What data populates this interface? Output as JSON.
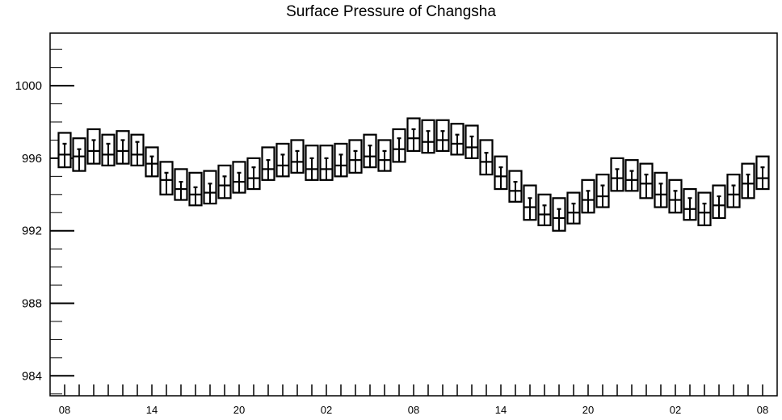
{
  "chart_data": {
    "type": "boxplot",
    "title": "Surface Pressure of Changsha",
    "xlabel": "",
    "ylabel": "",
    "ylim": [
      982.9,
      1002.9
    ],
    "yticks": [
      984,
      988,
      992,
      996,
      1000
    ],
    "xtick_labels": [
      "08",
      "14",
      "20",
      "02",
      "08",
      "14",
      "20",
      "02",
      "08"
    ],
    "grid": false,
    "box_color": "#000000",
    "boxes": [
      {
        "x": 0,
        "top": 997.4,
        "median": 996.2,
        "bottom": 995.5,
        "whisker": 996.8
      },
      {
        "x": 1,
        "top": 997.1,
        "median": 996.1,
        "bottom": 995.3,
        "whisker": 996.5
      },
      {
        "x": 2,
        "top": 997.6,
        "median": 996.4,
        "bottom": 995.7,
        "whisker": 997.0
      },
      {
        "x": 3,
        "top": 997.3,
        "median": 996.2,
        "bottom": 995.6,
        "whisker": 996.8
      },
      {
        "x": 4,
        "top": 997.5,
        "median": 996.4,
        "bottom": 995.7,
        "whisker": 997.0
      },
      {
        "x": 5,
        "top": 997.3,
        "median": 996.2,
        "bottom": 995.6,
        "whisker": 996.9
      },
      {
        "x": 6,
        "top": 996.6,
        "median": 995.7,
        "bottom": 995.0,
        "whisker": 996.1
      },
      {
        "x": 7,
        "top": 995.8,
        "median": 994.8,
        "bottom": 994.0,
        "whisker": 995.2
      },
      {
        "x": 8,
        "top": 995.4,
        "median": 994.3,
        "bottom": 993.7,
        "whisker": 994.7
      },
      {
        "x": 9,
        "top": 995.2,
        "median": 994.0,
        "bottom": 993.4,
        "whisker": 994.4
      },
      {
        "x": 10,
        "top": 995.3,
        "median": 994.1,
        "bottom": 993.5,
        "whisker": 994.6
      },
      {
        "x": 11,
        "top": 995.6,
        "median": 994.5,
        "bottom": 993.8,
        "whisker": 995.0
      },
      {
        "x": 12,
        "top": 995.8,
        "median": 994.7,
        "bottom": 994.1,
        "whisker": 995.2
      },
      {
        "x": 13,
        "top": 996.0,
        "median": 994.9,
        "bottom": 994.3,
        "whisker": 995.5
      },
      {
        "x": 14,
        "top": 996.6,
        "median": 995.4,
        "bottom": 994.8,
        "whisker": 995.9
      },
      {
        "x": 15,
        "top": 996.8,
        "median": 995.6,
        "bottom": 995.0,
        "whisker": 996.2
      },
      {
        "x": 16,
        "top": 997.0,
        "median": 995.8,
        "bottom": 995.2,
        "whisker": 996.4
      },
      {
        "x": 17,
        "top": 996.7,
        "median": 995.4,
        "bottom": 994.8,
        "whisker": 996.0
      },
      {
        "x": 18,
        "top": 996.7,
        "median": 995.4,
        "bottom": 994.8,
        "whisker": 996.0
      },
      {
        "x": 19,
        "top": 996.8,
        "median": 995.6,
        "bottom": 995.0,
        "whisker": 996.2
      },
      {
        "x": 20,
        "top": 997.0,
        "median": 995.9,
        "bottom": 995.2,
        "whisker": 996.4
      },
      {
        "x": 21,
        "top": 997.3,
        "median": 996.1,
        "bottom": 995.5,
        "whisker": 996.7
      },
      {
        "x": 22,
        "top": 997.0,
        "median": 995.9,
        "bottom": 995.3,
        "whisker": 996.4
      },
      {
        "x": 23,
        "top": 997.6,
        "median": 996.5,
        "bottom": 995.8,
        "whisker": 997.1
      },
      {
        "x": 24,
        "top": 998.2,
        "median": 997.1,
        "bottom": 996.4,
        "whisker": 997.6
      },
      {
        "x": 25,
        "top": 998.1,
        "median": 996.9,
        "bottom": 996.3,
        "whisker": 997.5
      },
      {
        "x": 26,
        "top": 998.1,
        "median": 997.0,
        "bottom": 996.4,
        "whisker": 997.5
      },
      {
        "x": 27,
        "top": 997.9,
        "median": 996.8,
        "bottom": 996.2,
        "whisker": 997.3
      },
      {
        "x": 28,
        "top": 997.8,
        "median": 996.6,
        "bottom": 996.0,
        "whisker": 997.2
      },
      {
        "x": 29,
        "top": 997.0,
        "median": 995.8,
        "bottom": 995.1,
        "whisker": 996.3
      },
      {
        "x": 30,
        "top": 996.1,
        "median": 995.0,
        "bottom": 994.3,
        "whisker": 995.5
      },
      {
        "x": 31,
        "top": 995.3,
        "median": 994.2,
        "bottom": 993.6,
        "whisker": 994.7
      },
      {
        "x": 32,
        "top": 994.5,
        "median": 993.3,
        "bottom": 992.6,
        "whisker": 993.8
      },
      {
        "x": 33,
        "top": 994.0,
        "median": 992.9,
        "bottom": 992.3,
        "whisker": 993.4
      },
      {
        "x": 34,
        "top": 993.8,
        "median": 992.7,
        "bottom": 992.0,
        "whisker": 993.2
      },
      {
        "x": 35,
        "top": 994.1,
        "median": 993.0,
        "bottom": 992.4,
        "whisker": 993.5
      },
      {
        "x": 36,
        "top": 994.8,
        "median": 993.7,
        "bottom": 993.0,
        "whisker": 994.2
      },
      {
        "x": 37,
        "top": 995.1,
        "median": 993.9,
        "bottom": 993.3,
        "whisker": 994.5
      },
      {
        "x": 38,
        "top": 996.0,
        "median": 994.9,
        "bottom": 994.2,
        "whisker": 995.4
      },
      {
        "x": 39,
        "top": 995.9,
        "median": 994.8,
        "bottom": 994.2,
        "whisker": 995.3
      },
      {
        "x": 40,
        "top": 995.7,
        "median": 994.6,
        "bottom": 993.8,
        "whisker": 995.1
      },
      {
        "x": 41,
        "top": 995.2,
        "median": 994.0,
        "bottom": 993.3,
        "whisker": 994.6
      },
      {
        "x": 42,
        "top": 994.8,
        "median": 993.7,
        "bottom": 993.0,
        "whisker": 994.2
      },
      {
        "x": 43,
        "top": 994.3,
        "median": 993.2,
        "bottom": 992.6,
        "whisker": 993.8
      },
      {
        "x": 44,
        "top": 994.1,
        "median": 993.0,
        "bottom": 992.3,
        "whisker": 993.5
      },
      {
        "x": 45,
        "top": 994.5,
        "median": 993.4,
        "bottom": 992.7,
        "whisker": 993.9
      },
      {
        "x": 46,
        "top": 995.1,
        "median": 994.0,
        "bottom": 993.3,
        "whisker": 994.5
      },
      {
        "x": 47,
        "top": 995.7,
        "median": 994.6,
        "bottom": 993.8,
        "whisker": 995.1
      },
      {
        "x": 48,
        "top": 996.1,
        "median": 994.9,
        "bottom": 994.3,
        "whisker": 995.5
      }
    ]
  }
}
